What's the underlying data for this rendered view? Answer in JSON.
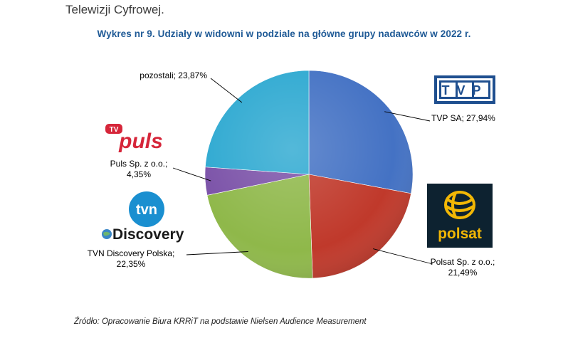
{
  "header": {
    "intro_text": "Telewizji Cyfrowej."
  },
  "chart_data": {
    "type": "pie",
    "title": "Wykres nr 9. Udziały w widowni w podziale na główne grupy nadawców w 2022 r.",
    "slices": [
      {
        "name": "TVP SA",
        "value": 27.94,
        "label_lines": [
          "TVP SA; 27,94%"
        ],
        "color": "#4472c4"
      },
      {
        "name": "Polsat Sp. z o.o.",
        "value": 21.49,
        "label_lines": [
          "Polsat Sp. z o.o.;",
          "21,49%"
        ],
        "color": "#c0392b"
      },
      {
        "name": "TVN Discovery Polska",
        "value": 22.35,
        "label_lines": [
          "TVN Discovery Polska;",
          "22,35%"
        ],
        "color": "#8fb84a"
      },
      {
        "name": "Puls Sp. z o.o.",
        "value": 4.35,
        "label_lines": [
          "Puls Sp. z o.o.;",
          "4,35%"
        ],
        "color": "#7b52a8"
      },
      {
        "name": "pozostali",
        "value": 23.87,
        "label_lines": [
          "pozostali; 23,87%"
        ],
        "color": "#2ea9d1"
      }
    ]
  },
  "logos": {
    "tvp": {
      "text": "TVP",
      "color": "#1f4f8f"
    },
    "puls": {
      "text": "puls",
      "badge": "TV",
      "color": "#d6263a"
    },
    "tvn": {
      "text": "tvn",
      "color": "#1a8fd0"
    },
    "discovery": {
      "text": "Discovery",
      "color": "#1a1a1a"
    },
    "polsat": {
      "text": "polsat",
      "color": "#f2b705",
      "bg": "#0d2230"
    }
  },
  "footer": {
    "source": "Źródło: Opracowanie Biura KRRiT na podstawie Nielsen Audience Measurement"
  }
}
